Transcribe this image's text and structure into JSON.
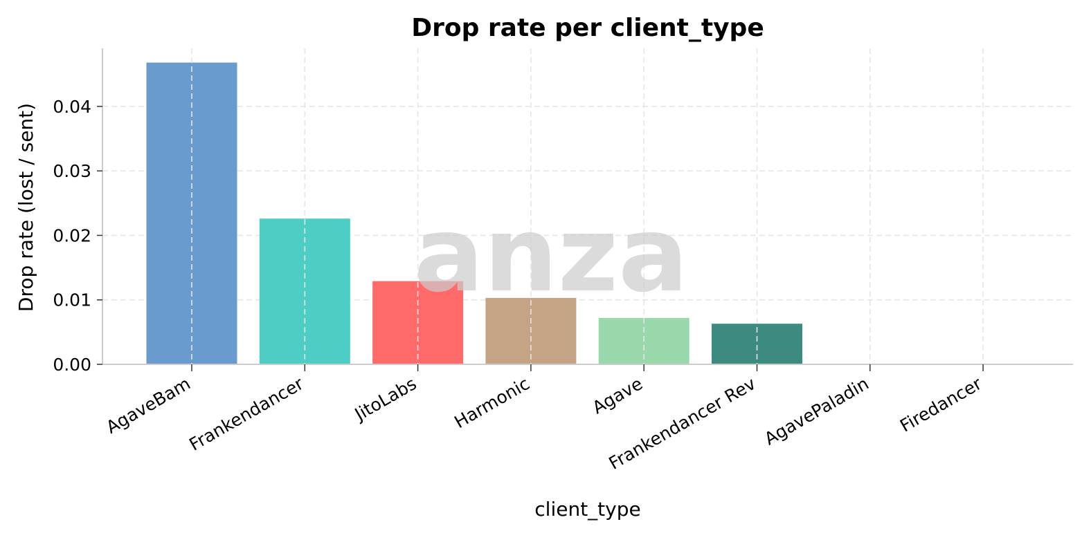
{
  "chart_data": {
    "type": "bar",
    "title": "Drop rate per client_type",
    "xlabel": "client_type",
    "ylabel": "Drop rate (lost / sent)",
    "categories": [
      "AgaveBam",
      "Frankendancer",
      "JitoLabs",
      "Harmonic",
      "Agave",
      "Frankendancer Rev",
      "AgavePaladin",
      "Firedancer"
    ],
    "values": [
      0.0468,
      0.0226,
      0.0129,
      0.0103,
      0.0072,
      0.0063,
      0.0,
      0.0
    ],
    "colors": [
      "#6a9bcf",
      "#4ecdc4",
      "#ff6b6b",
      "#c4a484",
      "#98d8aa",
      "#3d8a80",
      "#cccccc",
      "#cccccc"
    ],
    "yticks": [
      "0.00",
      "0.01",
      "0.02",
      "0.03",
      "0.04"
    ],
    "ylim": [
      0,
      0.049
    ],
    "grid": true,
    "watermark": "anza"
  }
}
